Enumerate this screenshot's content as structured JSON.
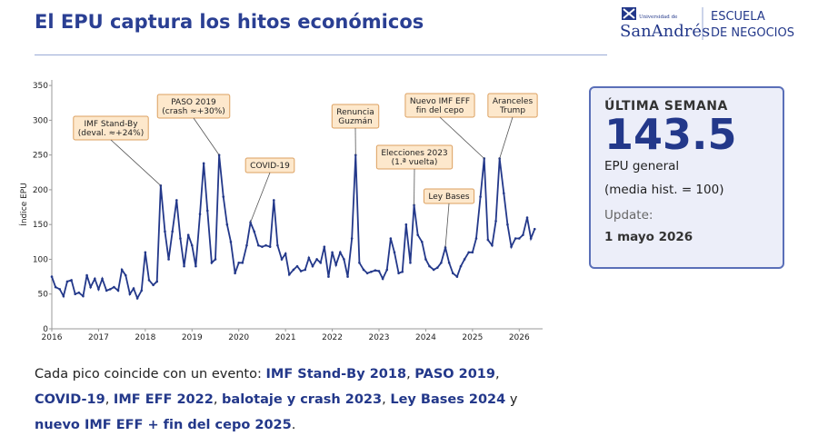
{
  "header": {
    "title": "El EPU captura los hitos económicos",
    "logo": {
      "small": "Universidad de",
      "name": "SanAndrés",
      "school": [
        "ESCUELA",
        "DE NEGOCIOS"
      ]
    }
  },
  "chart_data": {
    "type": "line",
    "y_label": "Índice EPU",
    "x": [
      2016,
      2016.08,
      2016.17,
      2016.25,
      2016.33,
      2016.42,
      2016.5,
      2016.58,
      2016.67,
      2016.75,
      2016.83,
      2016.92,
      2017,
      2017.08,
      2017.17,
      2017.25,
      2017.33,
      2017.42,
      2017.5,
      2017.58,
      2017.67,
      2017.75,
      2017.83,
      2017.92,
      2018,
      2018.08,
      2018.17,
      2018.25,
      2018.33,
      2018.42,
      2018.5,
      2018.58,
      2018.67,
      2018.75,
      2018.83,
      2018.92,
      2019,
      2019.08,
      2019.17,
      2019.25,
      2019.33,
      2019.42,
      2019.5,
      2019.58,
      2019.67,
      2019.75,
      2019.83,
      2019.92,
      2020,
      2020.08,
      2020.17,
      2020.25,
      2020.33,
      2020.42,
      2020.5,
      2020.58,
      2020.67,
      2020.75,
      2020.83,
      2020.92,
      2021,
      2021.08,
      2021.17,
      2021.25,
      2021.33,
      2021.42,
      2021.5,
      2021.58,
      2021.67,
      2021.75,
      2021.83,
      2021.92,
      2022,
      2022.08,
      2022.17,
      2022.25,
      2022.33,
      2022.42,
      2022.5,
      2022.58,
      2022.67,
      2022.75,
      2022.83,
      2022.92,
      2023,
      2023.08,
      2023.17,
      2023.25,
      2023.33,
      2023.42,
      2023.5,
      2023.58,
      2023.67,
      2023.75,
      2023.83,
      2023.92,
      2024,
      2024.08,
      2024.17,
      2024.25,
      2024.33,
      2024.42,
      2024.5,
      2024.58,
      2024.67,
      2024.75,
      2024.83,
      2024.92,
      2025,
      2025.08,
      2025.17,
      2025.25,
      2025.33,
      2025.42,
      2025.5,
      2025.58,
      2025.67,
      2025.75,
      2025.83,
      2025.92,
      2026,
      2026.08,
      2026.17,
      2026.25,
      2026.33
    ],
    "series": [
      {
        "color": "#23388a",
        "values": [
          75,
          60,
          57,
          47,
          68,
          70,
          50,
          52,
          47,
          77,
          60,
          72,
          57,
          72,
          55,
          57,
          60,
          55,
          85,
          77,
          50,
          58,
          44,
          55,
          110,
          70,
          63,
          68,
          206,
          140,
          100,
          140,
          185,
          130,
          90,
          135,
          120,
          90,
          165,
          238,
          170,
          95,
          100,
          250,
          190,
          150,
          125,
          80,
          95,
          95,
          120,
          153,
          140,
          120,
          118,
          120,
          118,
          185,
          120,
          100,
          108,
          78,
          85,
          90,
          83,
          85,
          102,
          90,
          100,
          95,
          118,
          75,
          110,
          92,
          110,
          100,
          75,
          130,
          250,
          95,
          85,
          80,
          82,
          84,
          83,
          72,
          85,
          130,
          110,
          80,
          82,
          150,
          95,
          178,
          135,
          125,
          100,
          90,
          85,
          88,
          95,
          117,
          95,
          80,
          75,
          90,
          100,
          110,
          110,
          130,
          190,
          245,
          128,
          120,
          155,
          245,
          195,
          150,
          118,
          130,
          130,
          135,
          160,
          130,
          143.5
        ]
      }
    ],
    "xlim": [
      2016,
      2026.5
    ],
    "ylim": [
      0,
      358
    ],
    "xticks": [
      2016,
      2017,
      2018,
      2019,
      2020,
      2021,
      2022,
      2023,
      2024,
      2025,
      2026
    ],
    "yticks": [
      0,
      50,
      100,
      150,
      200,
      250,
      300,
      350
    ],
    "grid": false,
    "annotations": [
      {
        "lines": [
          "IMF Stand-By",
          "(deval. ≈+24%)"
        ],
        "x": 2018.33,
        "y": 206
      },
      {
        "lines": [
          "PASO 2019",
          "(crash ≈+30%)"
        ],
        "x": 2019.58,
        "y": 250
      },
      {
        "lines": [
          "COVID-19"
        ],
        "x": 2020.25,
        "y": 153
      },
      {
        "lines": [
          "Renuncia",
          "Guzmán"
        ],
        "x": 2022.5,
        "y": 250
      },
      {
        "lines": [
          "Elecciones 2023",
          "(1.ª vuelta)"
        ],
        "x": 2023.75,
        "y": 178
      },
      {
        "lines": [
          "Ley Bases"
        ],
        "x": 2024.42,
        "y": 117
      },
      {
        "lines": [
          "Nuevo IMF EFF",
          "fin del cepo"
        ],
        "x": 2025.25,
        "y": 245
      },
      {
        "lines": [
          "Aranceles",
          "Trump"
        ],
        "x": 2025.58,
        "y": 245
      }
    ]
  },
  "stats": {
    "heading": "ÚLTIMA SEMANA",
    "value": 143.5,
    "label": "EPU general",
    "note": "(media hist. = 100)",
    "update_label": "Update:",
    "update_date": "1 mayo 2026"
  },
  "caption": [
    {
      "text": "Cada pico coincide con un evento: ",
      "bold": false
    },
    {
      "text": "IMF Stand-By 2018",
      "bold": true
    },
    {
      "text": ", ",
      "bold": false
    },
    {
      "text": "PASO 2019",
      "bold": true
    },
    {
      "text": ", ",
      "bold": false
    },
    {
      "text": "COVID-19",
      "bold": true
    },
    {
      "text": ", ",
      "bold": false
    },
    {
      "text": "IMF EFF 2022",
      "bold": true
    },
    {
      "text": ", ",
      "bold": false
    },
    {
      "text": "balotaje y crash 2023",
      "bold": true
    },
    {
      "text": ", ",
      "bold": false
    },
    {
      "text": "Ley Bases 2024",
      "bold": true
    },
    {
      "text": " y ",
      "bold": false
    },
    {
      "text": "nuevo IMF EFF + fin del cepo 2025",
      "bold": true
    },
    {
      "text": ".",
      "bold": false
    }
  ]
}
